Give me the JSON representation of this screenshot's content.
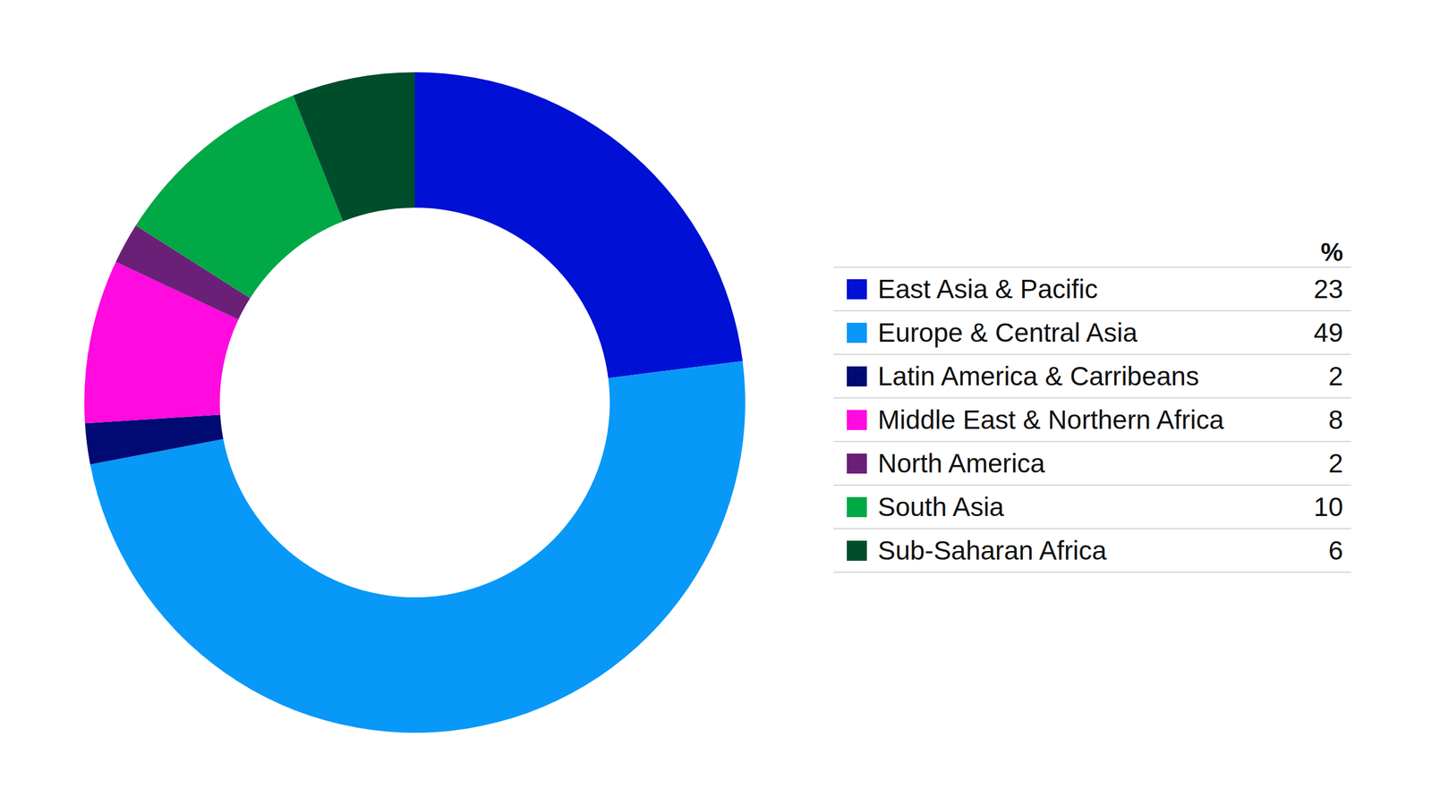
{
  "chart_data": {
    "type": "doughnut",
    "categories": [
      "East Asia & Pacific",
      "Europe & Central Asia",
      "Latin America & Carribeans",
      "Middle East & Northern Africa",
      "North America",
      "South Asia",
      "Sub-Saharan Africa"
    ],
    "values": [
      23,
      49,
      2,
      8,
      2,
      10,
      6
    ],
    "colors": [
      "#0010d4",
      "#0898f7",
      "#000a73",
      "#ff0adf",
      "#6b2078",
      "#00a846",
      "#004d2c"
    ],
    "legend": "right",
    "legend_title": "%"
  }
}
